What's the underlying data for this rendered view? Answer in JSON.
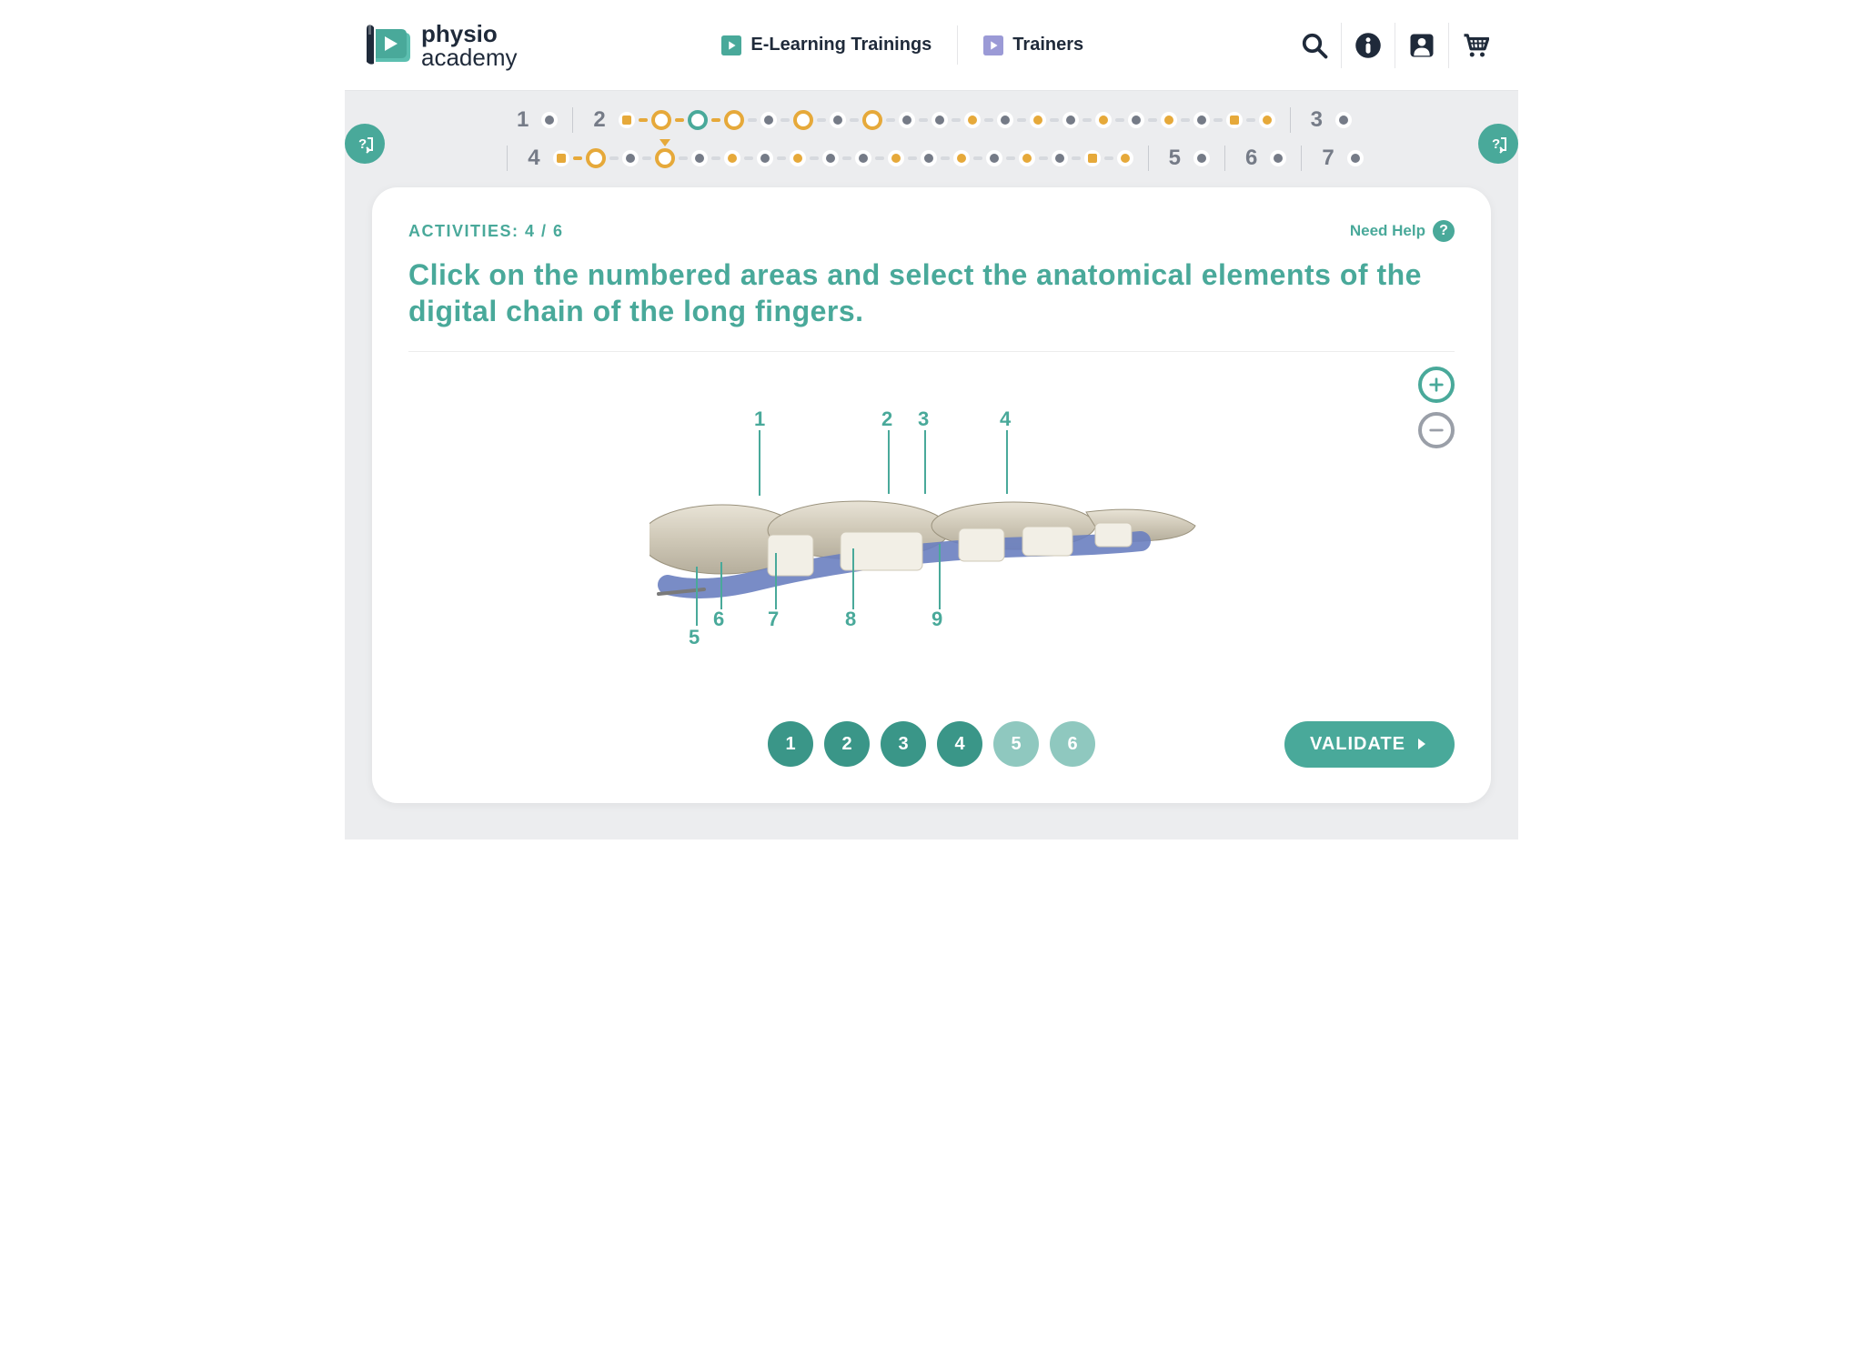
{
  "brand": {
    "line1": "physio",
    "line2": "academy"
  },
  "nav": {
    "elearning": "E-Learning Trainings",
    "trainers": "Trainers"
  },
  "progress": {
    "sections_row1": [
      "1",
      "2",
      "3"
    ],
    "sections_row2": [
      "4",
      "5",
      "6",
      "7"
    ]
  },
  "card": {
    "activities_label": "ACTIVITIES: 4 / 6",
    "need_help": "Need Help",
    "instruction": "Click on the numbered areas and select the anatomical elements of the digital chain of the long fingers.",
    "validate": "VALIDATE",
    "answer_buttons": [
      {
        "n": "1",
        "light": false
      },
      {
        "n": "2",
        "light": false
      },
      {
        "n": "3",
        "light": false
      },
      {
        "n": "4",
        "light": false
      },
      {
        "n": "5",
        "light": true
      },
      {
        "n": "6",
        "light": true
      }
    ],
    "labels": {
      "l1": "1",
      "l2": "2",
      "l3": "3",
      "l4": "4",
      "l5": "5",
      "l6": "6",
      "l7": "7",
      "l8": "8",
      "l9": "9"
    }
  },
  "colors": {
    "teal": "#49a99a",
    "orange": "#e6a93a",
    "navy": "#1f2a3a",
    "grey": "#757b87",
    "purple": "#7d7cc9"
  }
}
